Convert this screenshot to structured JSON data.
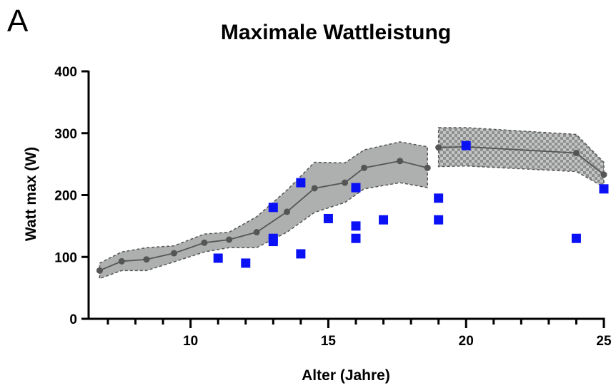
{
  "panel_letter": "A",
  "chart_data": {
    "type": "scatter",
    "title": "Maximale Wattleistung",
    "xlabel": "Alter (Jahre)",
    "ylabel": "Watt max (W)",
    "xlim": [
      6.3,
      25
    ],
    "ylim": [
      0,
      400
    ],
    "x_ticks_major": [
      10,
      15,
      20,
      25
    ],
    "x_ticks_minor": [
      7,
      8,
      9,
      11,
      12,
      13,
      14,
      16,
      17,
      18,
      19,
      21,
      22,
      23,
      24
    ],
    "y_ticks": [
      0,
      100,
      200,
      300,
      400
    ],
    "grid": false,
    "legend": "none",
    "colors": {
      "reference": "#555555",
      "band": "#aeb0b0",
      "observed": "#0a12f5"
    },
    "reference_segments": [
      {
        "band_style": "solid",
        "points": [
          {
            "x": 6.7,
            "y": 78,
            "low": 65,
            "high": 90
          },
          {
            "x": 7.5,
            "y": 93,
            "low": 78,
            "high": 108
          },
          {
            "x": 8.4,
            "y": 96,
            "low": 78,
            "high": 115
          },
          {
            "x": 9.4,
            "y": 106,
            "low": 92,
            "high": 118
          },
          {
            "x": 10.5,
            "y": 123,
            "low": 108,
            "high": 137
          },
          {
            "x": 11.4,
            "y": 128,
            "low": 115,
            "high": 140
          },
          {
            "x": 12.4,
            "y": 140,
            "low": 115,
            "high": 165
          },
          {
            "x": 13.5,
            "y": 173,
            "low": 140,
            "high": 208
          },
          {
            "x": 14.5,
            "y": 211,
            "low": 172,
            "high": 253
          },
          {
            "x": 15.6,
            "y": 220,
            "low": 188,
            "high": 252
          },
          {
            "x": 16.3,
            "y": 244,
            "low": 210,
            "high": 273
          },
          {
            "x": 17.6,
            "y": 255,
            "low": 220,
            "high": 286
          },
          {
            "x": 18.6,
            "y": 244,
            "low": 212,
            "high": 278
          }
        ]
      },
      {
        "band_style": "checkered",
        "points": [
          {
            "x": 19,
            "y": 277,
            "low": 246,
            "high": 309
          },
          {
            "x": 20,
            "y": 278,
            "low": 247,
            "high": 309
          },
          {
            "x": 24,
            "y": 268,
            "low": 238,
            "high": 298
          },
          {
            "x": 25,
            "y": 233,
            "low": 213,
            "high": 253
          }
        ]
      }
    ],
    "observed": [
      {
        "x": 11,
        "y": 98
      },
      {
        "x": 12,
        "y": 90
      },
      {
        "x": 13,
        "y": 180
      },
      {
        "x": 13,
        "y": 130
      },
      {
        "x": 13,
        "y": 125
      },
      {
        "x": 14,
        "y": 220
      },
      {
        "x": 14,
        "y": 105
      },
      {
        "x": 15,
        "y": 162
      },
      {
        "x": 16,
        "y": 212
      },
      {
        "x": 16,
        "y": 150
      },
      {
        "x": 16,
        "y": 130
      },
      {
        "x": 17,
        "y": 160
      },
      {
        "x": 19,
        "y": 195
      },
      {
        "x": 19,
        "y": 160
      },
      {
        "x": 20,
        "y": 280
      },
      {
        "x": 24,
        "y": 130
      },
      {
        "x": 25,
        "y": 210
      }
    ]
  }
}
